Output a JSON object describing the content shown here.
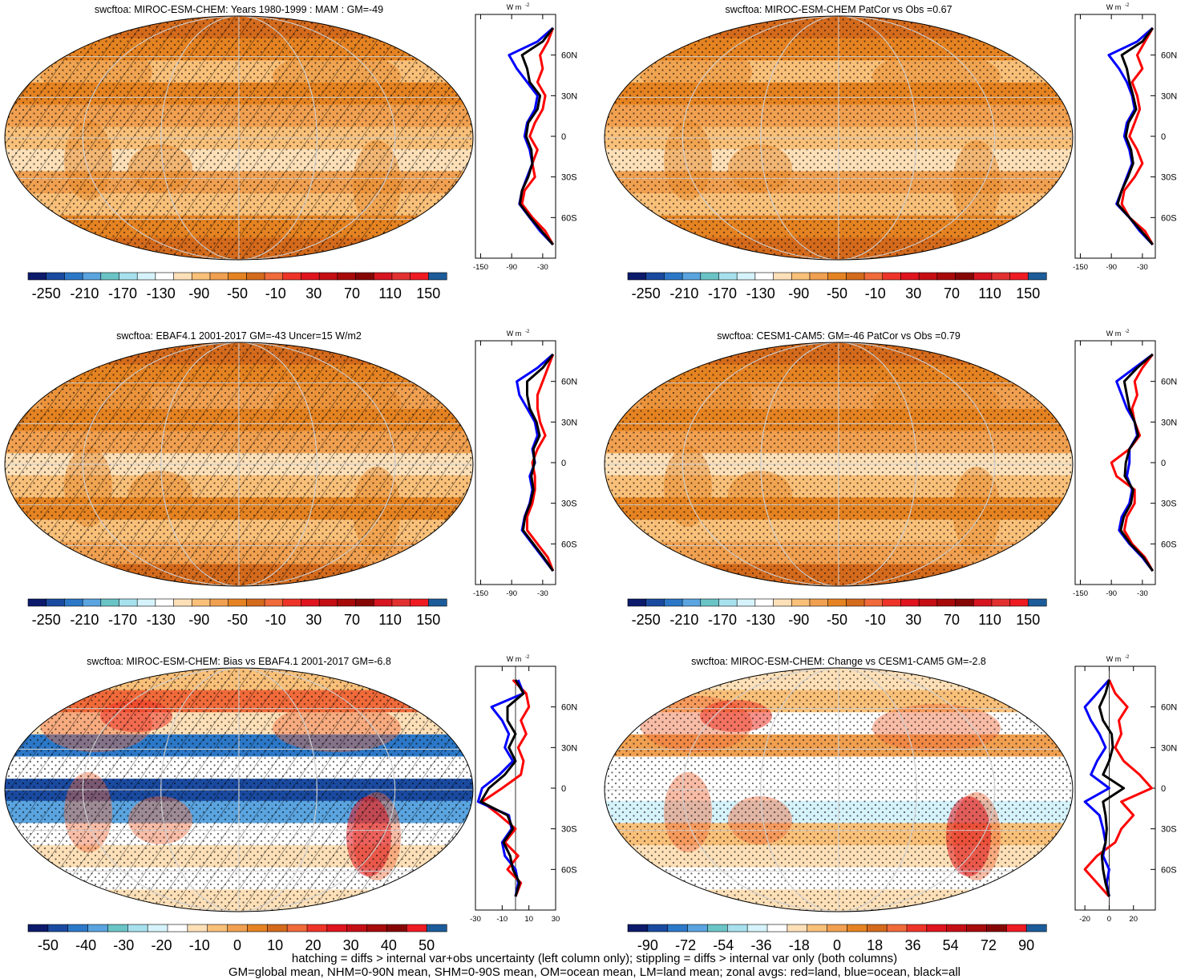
{
  "colors": {
    "abs_palette": [
      "#0b1a6b",
      "#1a4aa0",
      "#2c78c8",
      "#5aa4e0",
      "#6ac4c6",
      "#a7e1ee",
      "#d6f3fb",
      "#ffffff",
      "#fde0b8",
      "#f9c079",
      "#f0a050",
      "#e58322",
      "#d46a1c",
      "#f06a3a",
      "#ee3428",
      "#e0141e",
      "#c50e14",
      "#a80a0a",
      "#860606",
      "#d61520",
      "#e23030",
      "#ee1b23",
      "#1d5c9a"
    ],
    "diff_palette": [
      "#0b1a6b",
      "#1a4aa0",
      "#2c78c8",
      "#5aa4e0",
      "#6ac4c6",
      "#a7e1ee",
      "#d6f3fb",
      "#ffffff",
      "#fde0b8",
      "#f9c079",
      "#f0a050",
      "#e58322",
      "#d46a1c",
      "#f06a3a",
      "#ee3428",
      "#e0141e",
      "#c50e14",
      "#a80a0a",
      "#860606",
      "#ee1b23",
      "#1d5c9a"
    ],
    "land": "#ff0000",
    "ocean": "#0000ff",
    "all": "#000000"
  },
  "panels": [
    {
      "title": "swcftoa: MIROC-ESM-CHEM: Years 1980-1999 : MAM : GM=-49",
      "colorbar_labels": [
        "-250",
        "-210",
        "-170",
        "-130",
        "-90",
        "-50",
        "-10",
        "30",
        "70",
        "110",
        "150"
      ],
      "zonal_xticks": [
        "-150",
        "-90",
        "-30"
      ],
      "zonal_xlim": [
        -160,
        -5
      ],
      "zonal_unit": "W m",
      "zonal_unit_exp": "-2",
      "lat_labels": [
        "60N",
        "30N",
        "0",
        "30S",
        "60S"
      ],
      "hatching": true,
      "map_kind": "model"
    },
    {
      "title": "swcftoa: MIROC-ESM-CHEM PatCor vs Obs =0.67",
      "colorbar_labels": [
        "-250",
        "-210",
        "-170",
        "-130",
        "-90",
        "-50",
        "-10",
        "30",
        "70",
        "110",
        "150"
      ],
      "zonal_xticks": [
        "-150",
        "-90",
        "-30"
      ],
      "zonal_xlim": [
        -160,
        -5
      ],
      "zonal_unit": "W m",
      "zonal_unit_exp": "-2",
      "lat_labels": [
        "60N",
        "30N",
        "0",
        "30S",
        "60S"
      ],
      "hatching": false,
      "map_kind": "model"
    },
    {
      "title": "swcftoa: EBAF4.1 2001-2017 GM=-43 Uncer=15 W/m2",
      "colorbar_labels": [
        "-250",
        "-210",
        "-170",
        "-130",
        "-90",
        "-50",
        "-10",
        "30",
        "70",
        "110",
        "150"
      ],
      "zonal_xticks": [
        "-150",
        "-90",
        "-30"
      ],
      "zonal_xlim": [
        -160,
        -5
      ],
      "zonal_unit": "W m",
      "zonal_unit_exp": "-2",
      "lat_labels": [
        "60N",
        "30N",
        "0",
        "30S",
        "60S"
      ],
      "hatching": true,
      "map_kind": "obs"
    },
    {
      "title": "swcftoa: CESM1-CAM5: GM=-46 PatCor vs Obs =0.79",
      "colorbar_labels": [
        "-250",
        "-210",
        "-170",
        "-130",
        "-90",
        "-50",
        "-10",
        "30",
        "70",
        "110",
        "150"
      ],
      "zonal_xticks": [
        "-150",
        "-90",
        "-30"
      ],
      "zonal_xlim": [
        -160,
        -5
      ],
      "zonal_unit": "W m",
      "zonal_unit_exp": "-2",
      "lat_labels": [
        "60N",
        "30N",
        "0",
        "30S",
        "60S"
      ],
      "hatching": false,
      "map_kind": "obs"
    },
    {
      "title": "swcftoa: MIROC-ESM-CHEM: Bias vs EBAF4.1 2001-2017 GM=-6.8",
      "colorbar_labels": [
        "-50",
        "-40",
        "-30",
        "-20",
        "-10",
        "0",
        "10",
        "20",
        "30",
        "40",
        "50"
      ],
      "zonal_xticks": [
        "-30",
        "-10",
        "10",
        "30"
      ],
      "zonal_xlim": [
        -30,
        30
      ],
      "zonal_unit": "W m",
      "zonal_unit_exp": "-2",
      "lat_labels": [
        "60N",
        "30N",
        "0",
        "30S",
        "60S"
      ],
      "hatching": true,
      "map_kind": "bias"
    },
    {
      "title": "swcftoa: MIROC-ESM-CHEM: Change vs CESM1-CAM5 GM=-2.8",
      "colorbar_labels": [
        "-90",
        "-72",
        "-54",
        "-36",
        "-18",
        "0",
        "18",
        "36",
        "54",
        "72",
        "90"
      ],
      "zonal_xticks": [
        "-20",
        "0",
        "20"
      ],
      "zonal_xlim": [
        -28,
        38
      ],
      "zonal_unit": "W m",
      "zonal_unit_exp": "-2",
      "lat_labels": [
        "60N",
        "30N",
        "0",
        "30S",
        "60S"
      ],
      "hatching": false,
      "map_kind": "change"
    }
  ],
  "chart_data": [
    {
      "type": "line",
      "title": "swcftoa: MIROC-ESM-CHEM: Years 1980-1999 : MAM : GM=-49",
      "y": [
        80,
        70,
        60,
        50,
        40,
        30,
        20,
        10,
        0,
        -10,
        -20,
        -30,
        -40,
        -50,
        -60,
        -70,
        -80
      ],
      "series": [
        {
          "name": "land",
          "values": [
            -10,
            -20,
            -35,
            -30,
            -40,
            -25,
            -30,
            -45,
            -55,
            -40,
            -50,
            -45,
            -65,
            -70,
            -50,
            -25,
            -10
          ]
        },
        {
          "name": "ocean",
          "values": [
            -10,
            -40,
            -95,
            -80,
            -60,
            -40,
            -45,
            -60,
            -65,
            -55,
            -50,
            -60,
            -70,
            -75,
            -55,
            -35,
            -10
          ]
        },
        {
          "name": "all",
          "values": [
            -10,
            -30,
            -70,
            -60,
            -55,
            -35,
            -40,
            -58,
            -62,
            -52,
            -50,
            -58,
            -70,
            -74,
            -54,
            -32,
            -10
          ]
        }
      ]
    },
    {
      "type": "line",
      "title": "swcftoa: MIROC-ESM-CHEM PatCor vs Obs =0.67",
      "y": [
        80,
        70,
        60,
        50,
        40,
        30,
        20,
        10,
        0,
        -10,
        -20,
        -30,
        -40,
        -50,
        -60,
        -70,
        -80
      ],
      "series": [
        {
          "name": "land",
          "values": [
            -10,
            -25,
            -40,
            -30,
            -50,
            -40,
            -35,
            -45,
            -55,
            -40,
            -30,
            -45,
            -65,
            -70,
            -55,
            -25,
            -10
          ]
        },
        {
          "name": "ocean",
          "values": [
            -10,
            -40,
            -95,
            -75,
            -60,
            -50,
            -45,
            -60,
            -65,
            -55,
            -50,
            -60,
            -70,
            -80,
            -55,
            -35,
            -10
          ]
        },
        {
          "name": "all",
          "values": [
            -10,
            -30,
            -70,
            -60,
            -55,
            -48,
            -42,
            -57,
            -62,
            -52,
            -48,
            -58,
            -70,
            -78,
            -55,
            -32,
            -10
          ]
        }
      ]
    },
    {
      "type": "line",
      "title": "swcftoa: EBAF4.1 2001-2017 GM=-43 Uncer=15 W/m2",
      "y": [
        80,
        70,
        60,
        50,
        40,
        30,
        20,
        10,
        0,
        -10,
        -20,
        -30,
        -40,
        -50,
        -60,
        -70,
        -80
      ],
      "series": [
        {
          "name": "land",
          "values": [
            -10,
            -20,
            -30,
            -40,
            -40,
            -35,
            -25,
            -40,
            -50,
            -45,
            -45,
            -50,
            -60,
            -60,
            -40,
            -20,
            -10
          ]
        },
        {
          "name": "ocean",
          "values": [
            -10,
            -40,
            -80,
            -75,
            -60,
            -45,
            -40,
            -50,
            -45,
            -55,
            -50,
            -55,
            -65,
            -70,
            -50,
            -30,
            -10
          ]
        },
        {
          "name": "all",
          "values": [
            -10,
            -30,
            -60,
            -60,
            -55,
            -42,
            -36,
            -48,
            -46,
            -52,
            -48,
            -54,
            -64,
            -68,
            -48,
            -28,
            -10
          ]
        }
      ]
    },
    {
      "type": "line",
      "title": "swcftoa: CESM1-CAM5: GM=-46 PatCor vs Obs =0.79",
      "y": [
        80,
        70,
        60,
        50,
        40,
        30,
        20,
        10,
        0,
        -10,
        -20,
        -30,
        -40,
        -50,
        -60,
        -70,
        -80
      ],
      "series": [
        {
          "name": "land",
          "values": [
            -10,
            -30,
            -45,
            -40,
            -50,
            -45,
            -35,
            -55,
            -90,
            -80,
            -45,
            -45,
            -60,
            -65,
            -50,
            -25,
            -10
          ]
        },
        {
          "name": "ocean",
          "values": [
            -10,
            -45,
            -80,
            -70,
            -60,
            -45,
            -40,
            -55,
            -55,
            -60,
            -50,
            -55,
            -70,
            -75,
            -55,
            -30,
            -10
          ]
        },
        {
          "name": "all",
          "values": [
            -10,
            -40,
            -65,
            -60,
            -55,
            -45,
            -38,
            -55,
            -62,
            -64,
            -48,
            -52,
            -66,
            -72,
            -53,
            -28,
            -10
          ]
        }
      ]
    },
    {
      "type": "line",
      "title": "swcftoa: MIROC-ESM-CHEM: Bias vs EBAF4.1 2001-2017 GM=-6.8",
      "y": [
        80,
        70,
        60,
        50,
        40,
        30,
        20,
        10,
        0,
        -10,
        -20,
        -30,
        -40,
        -50,
        -60,
        -70,
        -80
      ],
      "series": [
        {
          "name": "land",
          "values": [
            -2,
            8,
            10,
            4,
            8,
            2,
            6,
            4,
            -10,
            -25,
            -12,
            0,
            -8,
            2,
            -6,
            4,
            0
          ]
        },
        {
          "name": "ocean",
          "values": [
            2,
            6,
            -18,
            -10,
            -5,
            -8,
            -2,
            -12,
            -25,
            -28,
            -5,
            -3,
            -10,
            -8,
            0,
            2,
            0
          ]
        },
        {
          "name": "all",
          "values": [
            0,
            6,
            -6,
            -6,
            0,
            -5,
            0,
            -8,
            -20,
            -26,
            -6,
            -2,
            -9,
            -4,
            -2,
            3,
            0
          ]
        }
      ]
    },
    {
      "type": "line",
      "title": "swcftoa: MIROC-ESM-CHEM: Change vs CESM1-CAM5 GM=-2.8",
      "y": [
        80,
        70,
        60,
        50,
        40,
        30,
        20,
        10,
        0,
        -10,
        -20,
        -30,
        -40,
        -50,
        -60,
        -70,
        -80
      ],
      "series": [
        {
          "name": "land",
          "values": [
            0,
            5,
            15,
            8,
            10,
            5,
            12,
            25,
            35,
            10,
            20,
            10,
            5,
            -10,
            -20,
            -10,
            0
          ]
        },
        {
          "name": "ocean",
          "values": [
            0,
            -10,
            -20,
            -15,
            -8,
            -3,
            -10,
            -15,
            0,
            -20,
            -8,
            -5,
            -3,
            -5,
            0,
            -2,
            0
          ]
        },
        {
          "name": "all",
          "values": [
            0,
            -3,
            -8,
            -5,
            2,
            3,
            0,
            -5,
            12,
            -5,
            -3,
            -2,
            -3,
            -6,
            -5,
            -3,
            0
          ]
        }
      ]
    }
  ],
  "captions": {
    "line1": "hatching = diffs > internal var+obs uncertainty (left column only); stippling = diffs > internal var only (both columns)",
    "line2": "GM=global mean, NHM=0-90N mean, SHM=0-90S mean, OM=ocean mean, LM=land mean; zonal avgs: red=land, blue=ocean, black=all"
  }
}
